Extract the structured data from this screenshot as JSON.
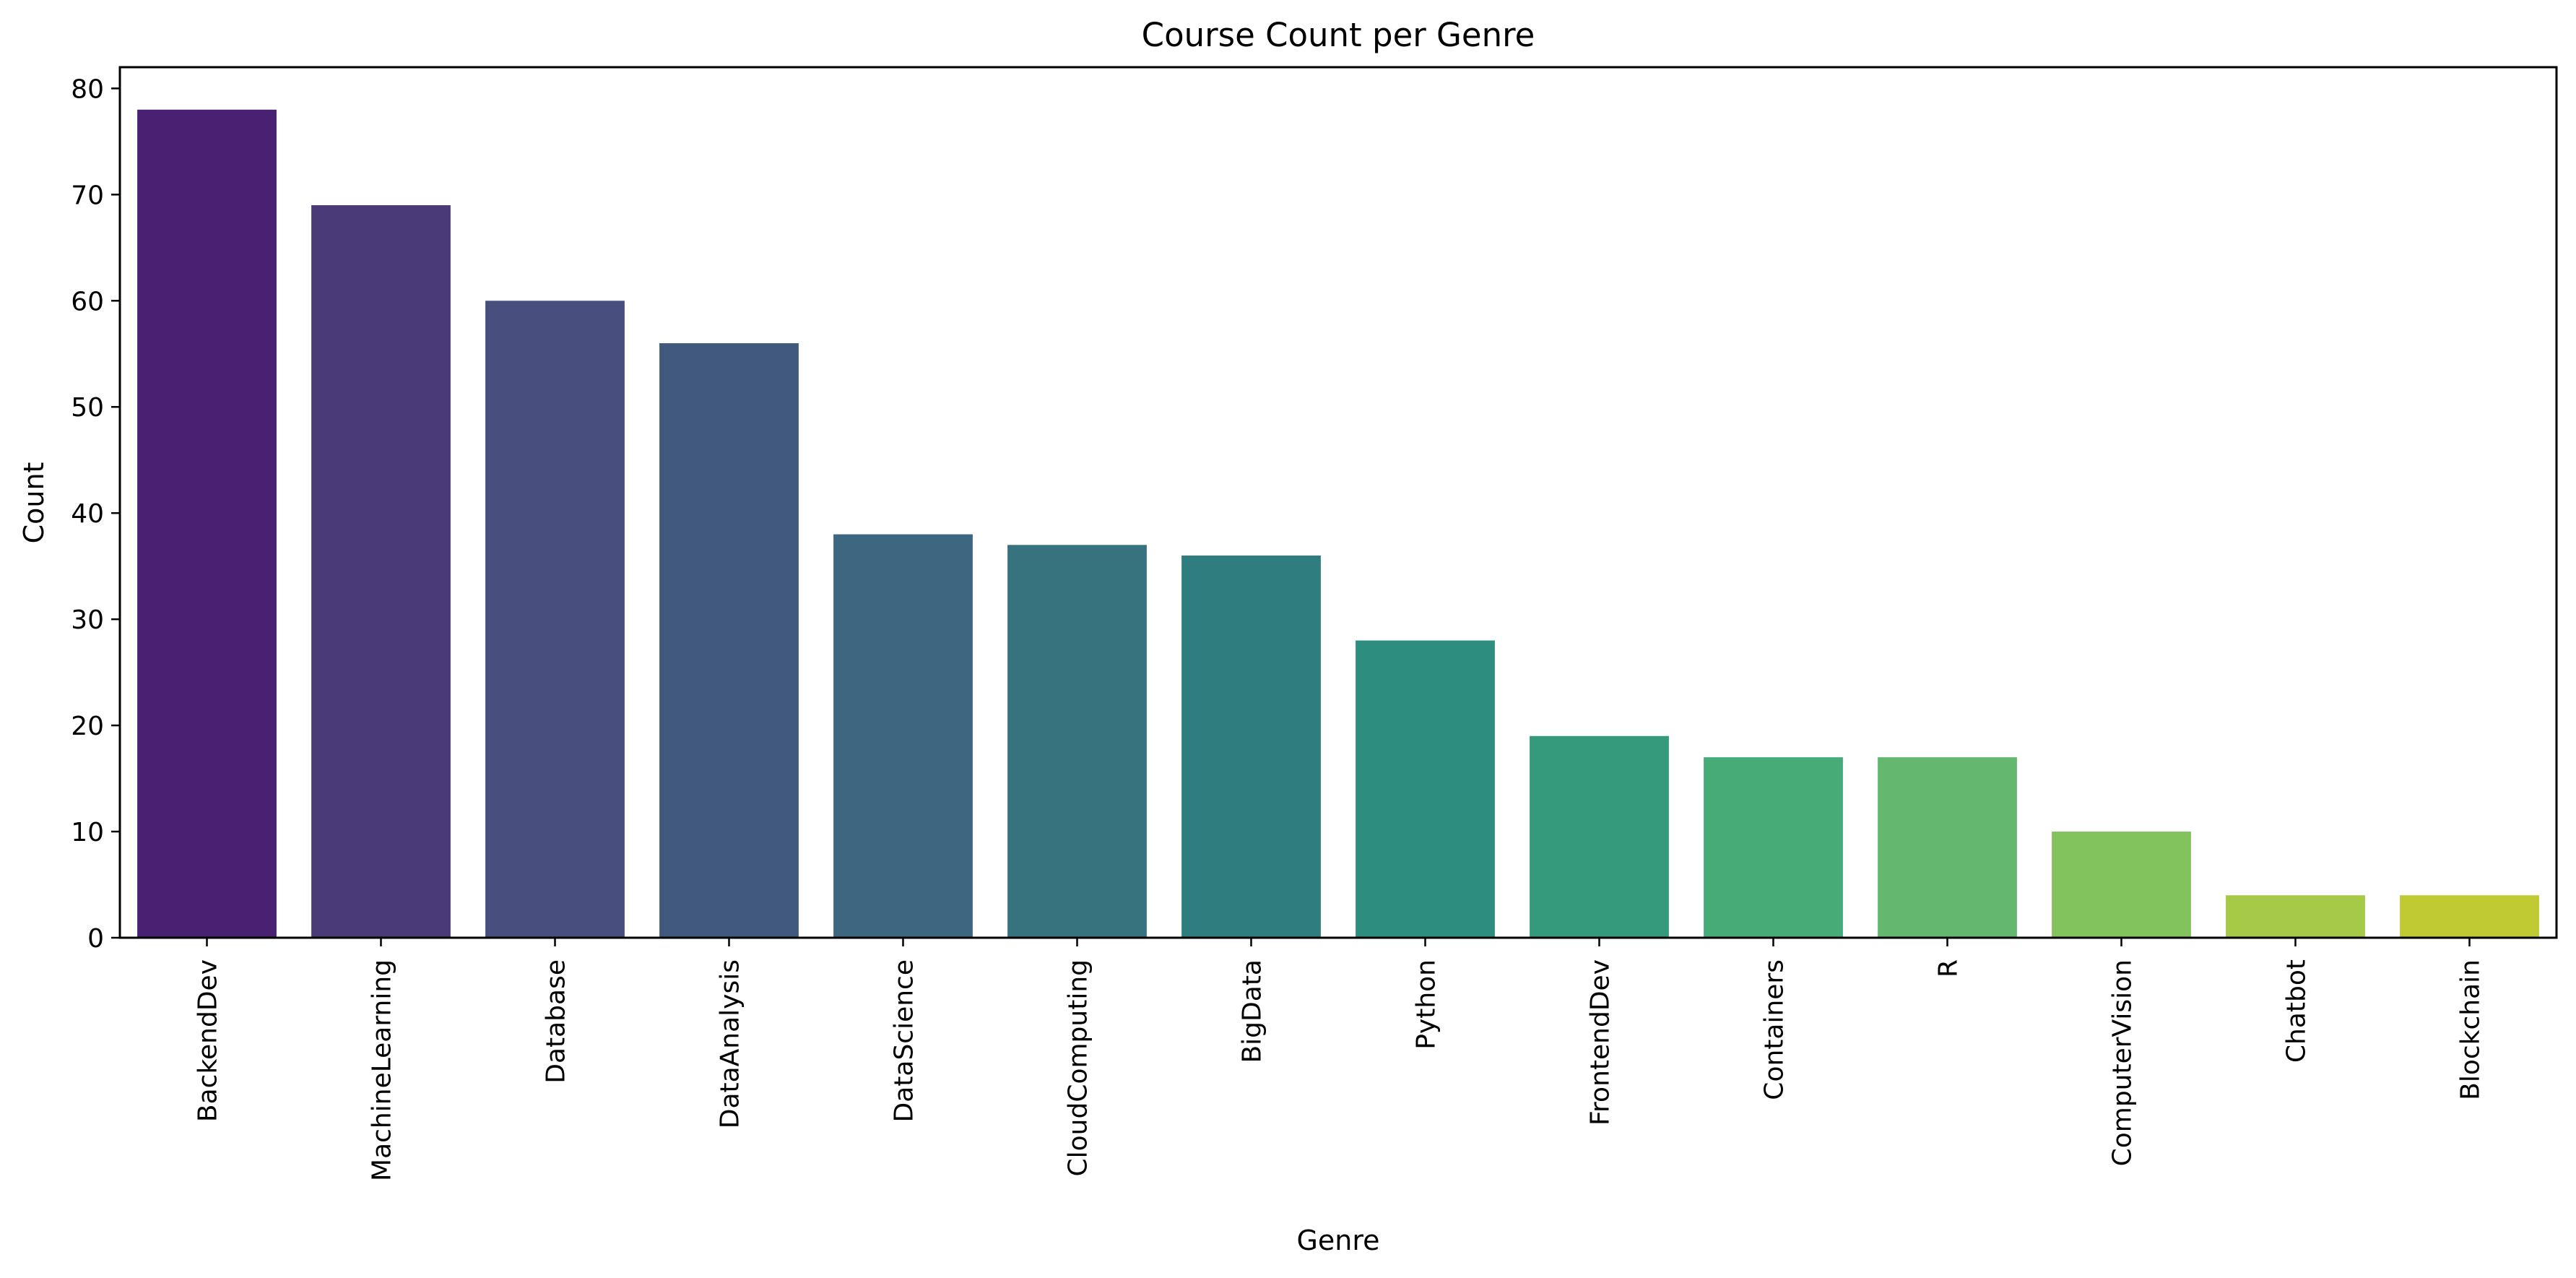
{
  "chart_data": {
    "type": "bar",
    "title": "Course Count per Genre",
    "xlabel": "Genre",
    "ylabel": "Count",
    "ylim": [
      0,
      82
    ],
    "yticks": [
      0,
      10,
      20,
      30,
      40,
      50,
      60,
      70,
      80
    ],
    "grid": false,
    "categories": [
      "BackendDev",
      "MachineLearning",
      "Database",
      "DataAnalysis",
      "DataScience",
      "CloudComputing",
      "BigData",
      "Python",
      "FrontendDev",
      "Containers",
      "R",
      "ComputerVision",
      "Chatbot",
      "Blockchain"
    ],
    "values": [
      78,
      69,
      60,
      56,
      38,
      37,
      36,
      28,
      19,
      17,
      17,
      10,
      4,
      4
    ],
    "colors": [
      "#482173",
      "#4a3a77",
      "#484e7d",
      "#41587f",
      "#3d6780",
      "#36737f",
      "#2f7d7e",
      "#2d8e7f",
      "#359a7b",
      "#47ab78",
      "#63b76f",
      "#82c35e",
      "#a6c947",
      "#c0ca33"
    ]
  }
}
